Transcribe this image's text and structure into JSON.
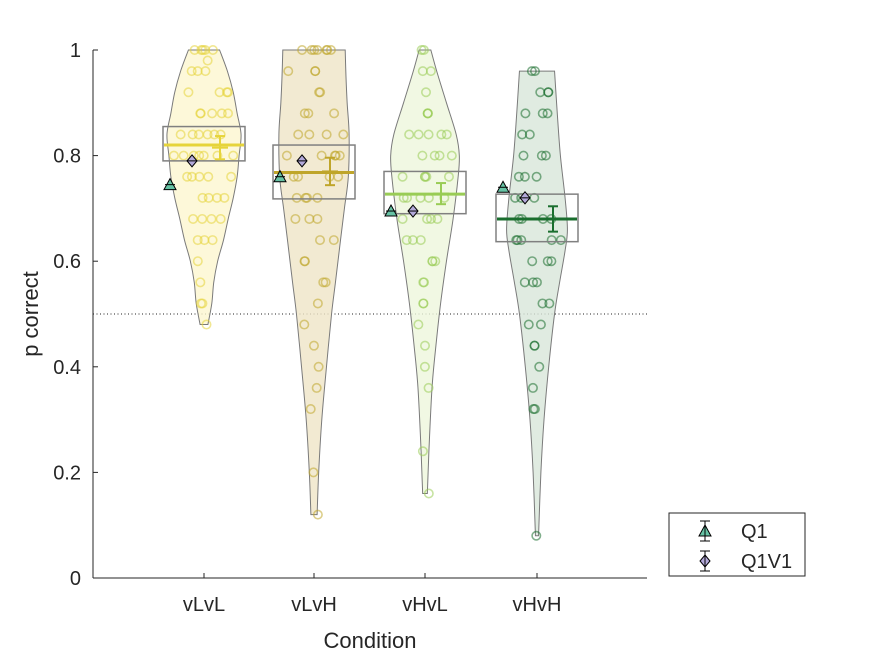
{
  "chart_data": {
    "type": "violin",
    "title": "",
    "xlabel": "Condition",
    "ylabel": "p correct",
    "ylim": [
      0,
      1
    ],
    "yticks": [
      "0",
      "0.2",
      "0.4",
      "0.6",
      "0.8",
      "1"
    ],
    "categories": [
      "vLvL",
      "vLvH",
      "vHvL",
      "vHvH"
    ],
    "reference_line": {
      "y": 0.5,
      "style": "dotted"
    },
    "grid": false,
    "legend": {
      "placement": "bottom-right-outside",
      "entries": [
        {
          "label": "Q1",
          "marker": "triangle",
          "color": "#66c2a4"
        },
        {
          "label": "Q1V1",
          "marker": "diamond",
          "color": "#b3a9d9"
        }
      ]
    },
    "groups": [
      {
        "name": "vLvL",
        "color": "#e6d43a",
        "fill": "#fdf6d0",
        "median": 0.82,
        "q1": 0.79,
        "q3": 0.855,
        "mean": 0.815,
        "sem": 0.022,
        "Q1": 0.745,
        "Q1V1": 0.79,
        "violin": [
          [
            0.48,
            0.01
          ],
          [
            0.52,
            0.02
          ],
          [
            0.56,
            0.025
          ],
          [
            0.6,
            0.035
          ],
          [
            0.64,
            0.05
          ],
          [
            0.68,
            0.062
          ],
          [
            0.72,
            0.075
          ],
          [
            0.76,
            0.085
          ],
          [
            0.8,
            0.09
          ],
          [
            0.84,
            0.095
          ],
          [
            0.88,
            0.085
          ],
          [
            0.92,
            0.075
          ],
          [
            0.96,
            0.06
          ],
          [
            1.0,
            0.04
          ]
        ],
        "points": [
          1,
          1,
          1,
          1,
          1,
          0.98,
          0.96,
          0.96,
          0.96,
          0.92,
          0.92,
          0.92,
          0.92,
          0.88,
          0.88,
          0.88,
          0.88,
          0.88,
          0.84,
          0.84,
          0.84,
          0.84,
          0.84,
          0.84,
          0.8,
          0.8,
          0.8,
          0.8,
          0.8,
          0.8,
          0.8,
          0.76,
          0.76,
          0.76,
          0.76,
          0.76,
          0.72,
          0.72,
          0.72,
          0.72,
          0.68,
          0.68,
          0.68,
          0.68,
          0.64,
          0.64,
          0.64,
          0.6,
          0.56,
          0.52,
          0.52,
          0.48
        ]
      },
      {
        "name": "vLvH",
        "color": "#bfa52a",
        "fill": "#efe5c7",
        "median": 0.768,
        "q1": 0.718,
        "q3": 0.82,
        "mean": 0.77,
        "sem": 0.026,
        "Q1": 0.76,
        "Q1V1": 0.79,
        "violin": [
          [
            0.12,
            0.008
          ],
          [
            0.2,
            0.012
          ],
          [
            0.3,
            0.02
          ],
          [
            0.4,
            0.032
          ],
          [
            0.5,
            0.045
          ],
          [
            0.56,
            0.055
          ],
          [
            0.64,
            0.068
          ],
          [
            0.7,
            0.078
          ],
          [
            0.76,
            0.088
          ],
          [
            0.84,
            0.09
          ],
          [
            0.9,
            0.085
          ],
          [
            0.95,
            0.082
          ],
          [
            1.0,
            0.08
          ]
        ],
        "points": [
          1,
          1,
          1,
          1,
          1,
          1,
          1,
          0.96,
          0.96,
          0.96,
          0.92,
          0.92,
          0.88,
          0.88,
          0.88,
          0.84,
          0.84,
          0.84,
          0.84,
          0.8,
          0.8,
          0.8,
          0.8,
          0.8,
          0.76,
          0.76,
          0.76,
          0.76,
          0.72,
          0.72,
          0.72,
          0.72,
          0.68,
          0.68,
          0.68,
          0.64,
          0.64,
          0.6,
          0.6,
          0.56,
          0.56,
          0.52,
          0.48,
          0.44,
          0.4,
          0.36,
          0.32,
          0.2,
          0.12
        ]
      },
      {
        "name": "vHvL",
        "color": "#99cc55",
        "fill": "#edf6dc",
        "median": 0.727,
        "q1": 0.69,
        "q3": 0.77,
        "mean": 0.728,
        "sem": 0.02,
        "Q1": 0.695,
        "Q1V1": 0.695,
        "violin": [
          [
            0.16,
            0.006
          ],
          [
            0.24,
            0.01
          ],
          [
            0.36,
            0.018
          ],
          [
            0.44,
            0.028
          ],
          [
            0.52,
            0.04
          ],
          [
            0.6,
            0.055
          ],
          [
            0.68,
            0.072
          ],
          [
            0.76,
            0.085
          ],
          [
            0.8,
            0.088
          ],
          [
            0.84,
            0.08
          ],
          [
            0.9,
            0.055
          ],
          [
            0.96,
            0.03
          ],
          [
            1.0,
            0.015
          ]
        ],
        "points": [
          1,
          1,
          0.96,
          0.96,
          0.92,
          0.88,
          0.88,
          0.88,
          0.84,
          0.84,
          0.84,
          0.84,
          0.84,
          0.8,
          0.8,
          0.8,
          0.8,
          0.76,
          0.76,
          0.76,
          0.76,
          0.76,
          0.72,
          0.72,
          0.72,
          0.72,
          0.72,
          0.68,
          0.68,
          0.68,
          0.68,
          0.64,
          0.64,
          0.64,
          0.6,
          0.6,
          0.6,
          0.56,
          0.56,
          0.52,
          0.52,
          0.48,
          0.44,
          0.4,
          0.36,
          0.24,
          0.16
        ]
      },
      {
        "name": "vHvH",
        "color": "#1a6e2e",
        "fill": "#d8e6da",
        "median": 0.68,
        "q1": 0.637,
        "q3": 0.727,
        "mean": 0.68,
        "sem": 0.024,
        "Q1": 0.74,
        "Q1V1": 0.72,
        "violin": [
          [
            0.08,
            0.004
          ],
          [
            0.2,
            0.01
          ],
          [
            0.3,
            0.018
          ],
          [
            0.4,
            0.03
          ],
          [
            0.5,
            0.045
          ],
          [
            0.56,
            0.058
          ],
          [
            0.62,
            0.072
          ],
          [
            0.66,
            0.078
          ],
          [
            0.72,
            0.072
          ],
          [
            0.8,
            0.06
          ],
          [
            0.88,
            0.052
          ],
          [
            0.96,
            0.045
          ]
        ],
        "points": [
          0.96,
          0.96,
          0.92,
          0.92,
          0.92,
          0.88,
          0.88,
          0.88,
          0.84,
          0.84,
          0.8,
          0.8,
          0.8,
          0.76,
          0.76,
          0.76,
          0.72,
          0.72,
          0.72,
          0.68,
          0.68,
          0.68,
          0.68,
          0.64,
          0.64,
          0.64,
          0.64,
          0.64,
          0.6,
          0.6,
          0.6,
          0.56,
          0.56,
          0.56,
          0.52,
          0.52,
          0.48,
          0.48,
          0.44,
          0.44,
          0.4,
          0.36,
          0.32,
          0.32,
          0.08
        ]
      }
    ]
  }
}
